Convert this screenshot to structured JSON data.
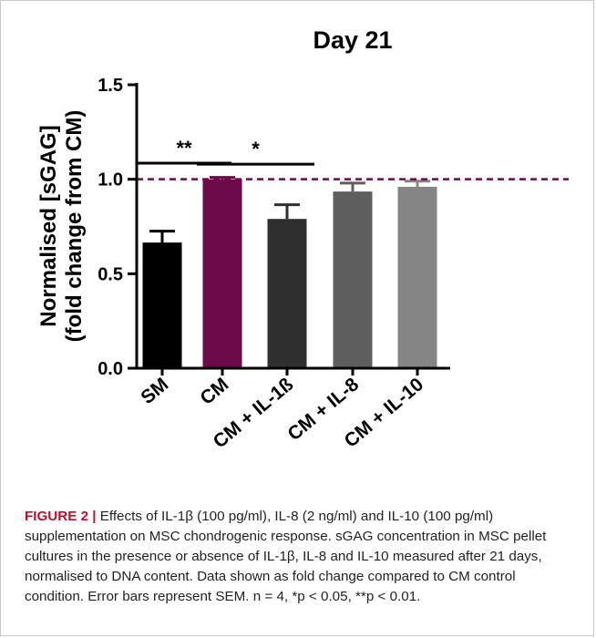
{
  "figure": {
    "label": "FIGURE 2",
    "separator": "|",
    "caption": "Effects of IL-1β (100 pg/ml), IL-8 (2 ng/ml) and IL-10 (100 pg/ml) supplementation on MSC chondrogenic response. sGAG concentration in MSC pellet cultures in the presence or absence of IL-1β, IL-8 and IL-10 measured after 21 days, normalised to DNA content. Data shown as fold change compared to CM control condition. Error bars represent SEM. n = 4, *p < 0.05, **p < 0.01."
  },
  "chart_data": {
    "type": "bar",
    "title": "Day 21",
    "ylabel_line1": "Normalised [sGAG]",
    "ylabel_line2": "(fold change from CM)",
    "xlabel": "",
    "ylim": [
      0,
      1.5
    ],
    "yticks": [
      "0.0",
      "0.5",
      "1.0",
      "1.5"
    ],
    "ytick_values": [
      0,
      0.5,
      1.0,
      1.5
    ],
    "categories": [
      "SM",
      "CM",
      "CM + IL-1ß",
      "CM + IL-8",
      "CM + IL-10"
    ],
    "values": [
      0.665,
      1.0,
      0.79,
      0.935,
      0.96
    ],
    "errors": [
      0.06,
      0.01,
      0.075,
      0.045,
      0.03
    ],
    "colors": [
      "#000000",
      "#6d0a4a",
      "#2f2f2f",
      "#5e5e5e",
      "#858585"
    ],
    "reference_line": {
      "y": 1.0,
      "color": "#6d0a4a",
      "style": "dashed"
    },
    "significance": [
      {
        "from": 0,
        "to": 1,
        "label": "**",
        "y": 1.085
      },
      {
        "from": 1,
        "to": 2,
        "label": "*",
        "y": 1.08
      }
    ],
    "grid": false,
    "legend": "none"
  }
}
